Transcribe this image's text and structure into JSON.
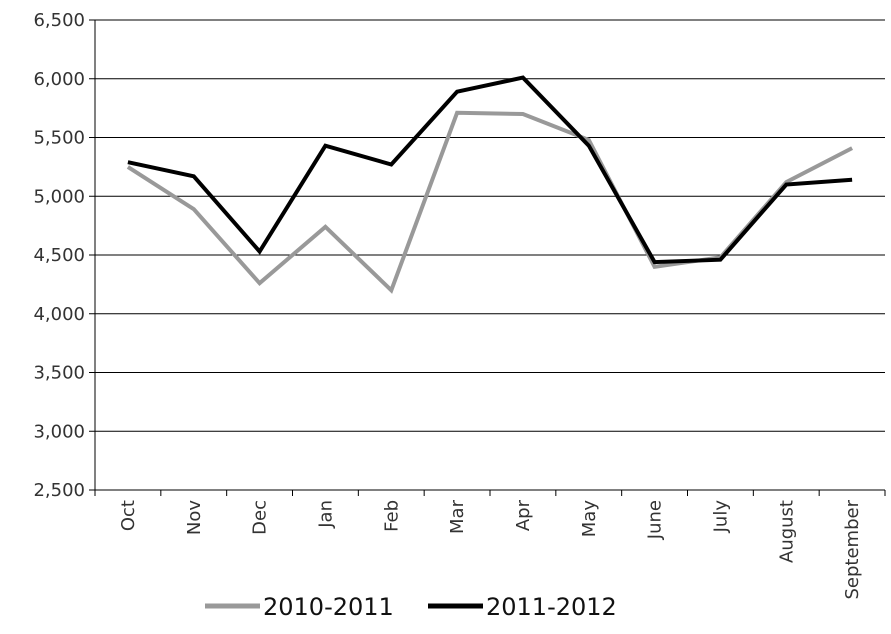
{
  "chart_data": {
    "type": "line",
    "categories": [
      "Oct",
      "Nov",
      "Dec",
      "Jan",
      "Feb",
      "Mar",
      "Apr",
      "May",
      "June",
      "July",
      "August",
      "September"
    ],
    "series": [
      {
        "name": "2010-2011",
        "color": "#999999",
        "values": [
          5250,
          4890,
          4260,
          4740,
          4200,
          5710,
          5700,
          5480,
          4400,
          4480,
          5120,
          5410
        ]
      },
      {
        "name": "2011-2012",
        "color": "#000000",
        "values": [
          5290,
          5170,
          4530,
          5430,
          5270,
          5890,
          6010,
          5430,
          4440,
          4460,
          5100,
          5140
        ]
      }
    ],
    "y_ticks": [
      "2,500",
      "3,000",
      "3,500",
      "4,000",
      "4,500",
      "5,000",
      "5,500",
      "6,000",
      "6,500"
    ],
    "ylim": [
      2500,
      6500
    ],
    "ystep": 500,
    "grid": true,
    "legend": "bottom",
    "title": "",
    "xlabel": "",
    "ylabel": ""
  }
}
